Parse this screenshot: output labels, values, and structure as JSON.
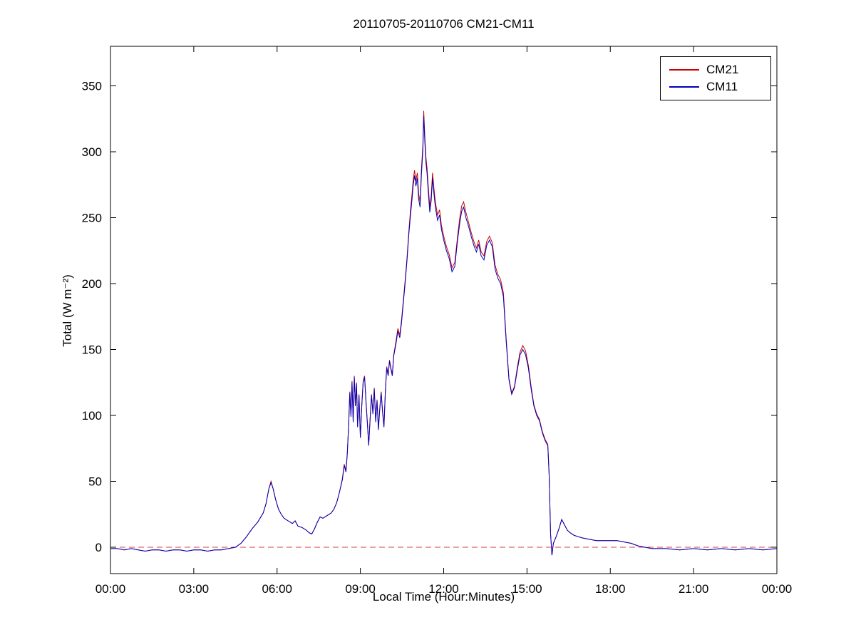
{
  "figure_title": "20110705-20110706 CM21-CM11",
  "chart_data": {
    "type": "line",
    "title": "20110705-20110706 CM21-CM11",
    "xlabel": "Local Time (Hour:Minutes)",
    "ylabel": "Total (W m⁻²)",
    "xlim": [
      0,
      24
    ],
    "ylim": [
      -20,
      380
    ],
    "grid": false,
    "legend_position": "top-right",
    "x_ticks": [
      0,
      3,
      6,
      9,
      12,
      15,
      18,
      21,
      24
    ],
    "x_tick_labels": [
      "00:00",
      "03:00",
      "06:00",
      "09:00",
      "12:00",
      "15:00",
      "18:00",
      "21:00",
      "00:00"
    ],
    "y_ticks": [
      0,
      50,
      100,
      150,
      200,
      250,
      300,
      350
    ],
    "zero_line": {
      "y": 0,
      "color": "#cc4444",
      "style": "dashed"
    },
    "x": [
      0.0,
      0.25,
      0.5,
      0.75,
      1.0,
      1.25,
      1.5,
      1.75,
      2.0,
      2.25,
      2.5,
      2.75,
      3.0,
      3.25,
      3.5,
      3.75,
      4.0,
      4.25,
      4.5,
      4.7,
      4.9,
      5.1,
      5.3,
      5.5,
      5.6,
      5.7,
      5.78,
      5.85,
      5.95,
      6.05,
      6.15,
      6.25,
      6.4,
      6.55,
      6.65,
      6.75,
      6.9,
      7.05,
      7.15,
      7.25,
      7.35,
      7.45,
      7.55,
      7.65,
      7.8,
      7.95,
      8.05,
      8.15,
      8.25,
      8.35,
      8.42,
      8.48,
      8.53,
      8.58,
      8.62,
      8.66,
      8.7,
      8.74,
      8.78,
      8.82,
      8.86,
      8.9,
      8.95,
      9.0,
      9.05,
      9.1,
      9.15,
      9.2,
      9.25,
      9.3,
      9.35,
      9.4,
      9.45,
      9.5,
      9.55,
      9.6,
      9.65,
      9.7,
      9.75,
      9.8,
      9.85,
      9.9,
      9.95,
      10.0,
      10.05,
      10.1,
      10.15,
      10.2,
      10.28,
      10.35,
      10.42,
      10.48,
      10.55,
      10.62,
      10.68,
      10.74,
      10.8,
      10.86,
      10.9,
      10.95,
      11.0,
      11.05,
      11.1,
      11.15,
      11.2,
      11.25,
      11.28,
      11.32,
      11.36,
      11.4,
      11.45,
      11.5,
      11.55,
      11.6,
      11.65,
      11.7,
      11.78,
      11.85,
      11.92,
      12.0,
      12.1,
      12.2,
      12.3,
      12.4,
      12.5,
      12.58,
      12.65,
      12.72,
      12.8,
      12.9,
      13.0,
      13.1,
      13.18,
      13.26,
      13.35,
      13.45,
      13.55,
      13.65,
      13.75,
      13.85,
      13.95,
      14.05,
      14.15,
      14.25,
      14.35,
      14.45,
      14.55,
      14.65,
      14.75,
      14.85,
      14.95,
      15.05,
      15.15,
      15.25,
      15.35,
      15.45,
      15.55,
      15.65,
      15.75,
      15.8,
      15.85,
      15.9,
      15.95,
      16.05,
      16.15,
      16.25,
      16.35,
      16.45,
      16.55,
      16.7,
      16.85,
      17.0,
      17.25,
      17.5,
      17.75,
      18.0,
      18.25,
      18.5,
      18.75,
      19.0,
      19.25,
      19.5,
      20.0,
      20.5,
      21.0,
      21.5,
      22.0,
      22.5,
      23.0,
      23.5,
      24.0
    ],
    "series": [
      {
        "name": "CM21",
        "color": "#cc0000",
        "values": [
          -1,
          -1,
          -2,
          -1,
          -2,
          -3,
          -2,
          -2,
          -3,
          -2,
          -2,
          -3,
          -2,
          -2,
          -3,
          -2,
          -2,
          -1,
          0,
          3,
          8,
          14,
          19,
          26,
          33,
          44,
          50,
          45,
          36,
          29,
          25,
          22,
          20,
          18,
          20,
          16,
          15,
          13,
          11,
          10,
          14,
          19,
          23,
          22,
          24,
          26,
          29,
          34,
          42,
          52,
          63,
          58,
          72,
          95,
          118,
          100,
          126,
          96,
          130,
          108,
          125,
          92,
          116,
          84,
          108,
          126,
          130,
          112,
          95,
          78,
          98,
          116,
          102,
          121,
          96,
          112,
          90,
          106,
          118,
          103,
          92,
          119,
          137,
          131,
          142,
          136,
          131,
          146,
          156,
          166,
          161,
          172,
          188,
          204,
          220,
          238,
          255,
          268,
          278,
          286,
          278,
          284,
          268,
          262,
          287,
          305,
          331,
          312,
          296,
          288,
          272,
          258,
          267,
          284,
          272,
          262,
          252,
          256,
          244,
          236,
          228,
          222,
          212,
          216,
          236,
          250,
          259,
          262,
          254,
          246,
          238,
          231,
          227,
          233,
          224,
          221,
          232,
          236,
          231,
          214,
          207,
          203,
          193,
          158,
          128,
          117,
          122,
          136,
          148,
          153,
          149,
          138,
          122,
          108,
          101,
          97,
          88,
          82,
          78,
          55,
          10,
          -6,
          3,
          8,
          14,
          21,
          17,
          13,
          11,
          9,
          8,
          7,
          6,
          5,
          5,
          5,
          5,
          4,
          3,
          1,
          0,
          -1,
          -1,
          -2,
          -1,
          -2,
          -1,
          -2,
          -1,
          -2,
          -1
        ]
      },
      {
        "name": "CM11",
        "color": "#0000bb",
        "values": [
          -1,
          -1,
          -2,
          -1,
          -2,
          -3,
          -2,
          -2,
          -3,
          -2,
          -2,
          -3,
          -2,
          -2,
          -3,
          -2,
          -2,
          -1,
          0,
          3,
          8,
          14,
          19,
          26,
          33,
          44,
          49,
          45,
          36,
          29,
          25,
          22,
          20,
          18,
          20,
          16,
          15,
          13,
          11,
          10,
          14,
          19,
          23,
          22,
          24,
          26,
          29,
          34,
          42,
          51,
          62,
          57,
          71,
          94,
          117,
          99,
          125,
          95,
          129,
          107,
          124,
          91,
          115,
          83,
          107,
          125,
          129,
          111,
          94,
          77,
          97,
          115,
          101,
          120,
          95,
          111,
          89,
          105,
          117,
          102,
          91,
          118,
          136,
          130,
          141,
          135,
          130,
          145,
          154,
          164,
          159,
          170,
          186,
          202,
          218,
          236,
          251,
          264,
          274,
          282,
          274,
          280,
          264,
          258,
          283,
          301,
          327,
          308,
          292,
          284,
          268,
          254,
          263,
          280,
          268,
          258,
          248,
          252,
          241,
          233,
          225,
          219,
          209,
          213,
          233,
          246,
          255,
          258,
          250,
          243,
          235,
          228,
          224,
          230,
          221,
          218,
          229,
          233,
          228,
          211,
          204,
          200,
          190,
          156,
          127,
          116,
          121,
          134,
          146,
          150,
          146,
          136,
          120,
          107,
          100,
          96,
          87,
          81,
          77,
          54,
          10,
          -6,
          3,
          8,
          14,
          21,
          17,
          13,
          11,
          9,
          8,
          7,
          6,
          5,
          5,
          5,
          5,
          4,
          3,
          1,
          0,
          -1,
          -1,
          -2,
          -1,
          -2,
          -1,
          -2,
          -1,
          -2,
          -1
        ]
      }
    ]
  }
}
